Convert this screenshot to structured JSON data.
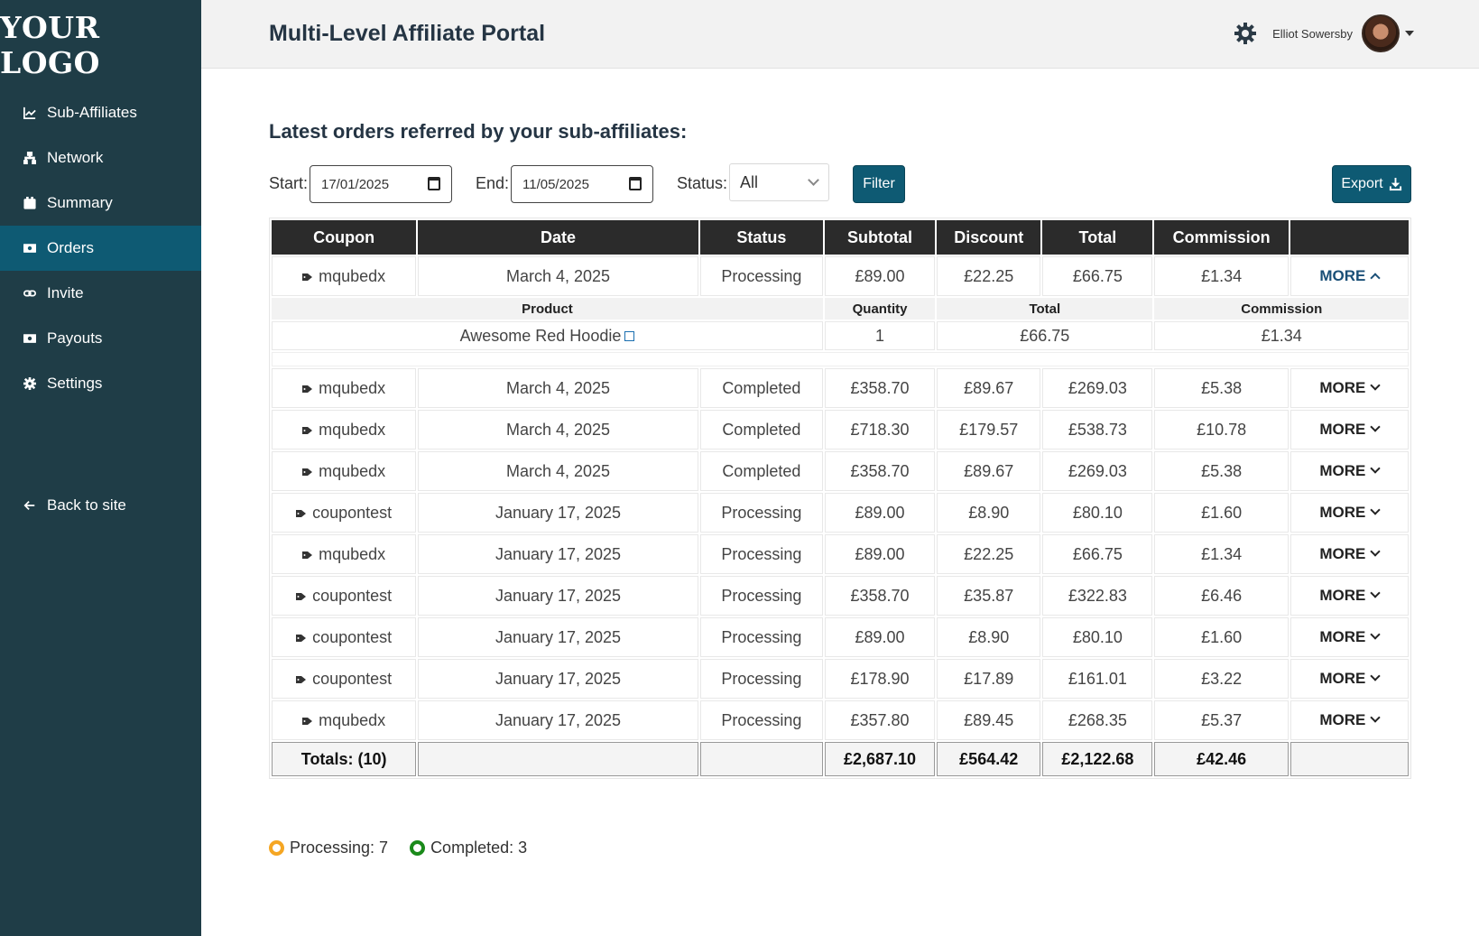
{
  "brand": {
    "logo_text": "YOUR LOGO"
  },
  "sidebar": {
    "items": [
      {
        "label": "Sub-Affiliates",
        "icon": "chart-line-icon"
      },
      {
        "label": "Network",
        "icon": "sitemap-icon"
      },
      {
        "label": "Summary",
        "icon": "calendar-icon"
      },
      {
        "label": "Orders",
        "icon": "money-icon",
        "active": true
      },
      {
        "label": "Invite",
        "icon": "link-icon"
      },
      {
        "label": "Payouts",
        "icon": "money-icon"
      },
      {
        "label": "Settings",
        "icon": "gear-icon"
      }
    ],
    "back_label": "Back to site"
  },
  "header": {
    "title": "Multi-Level Affiliate Portal",
    "user_name": "Elliot Sowersby"
  },
  "main": {
    "title": "Latest orders referred by your sub-affiliates:",
    "filters": {
      "start_label": "Start:",
      "start_value": "17/01/2025",
      "end_label": "End:",
      "end_value": "11/05/2025",
      "status_label": "Status:",
      "status_value": "All",
      "filter_label": "Filter",
      "export_label": "Export"
    },
    "table": {
      "headers": [
        "Coupon",
        "Date",
        "Status",
        "Subtotal",
        "Discount",
        "Total",
        "Commission",
        ""
      ],
      "more_label": "MORE",
      "expanded": {
        "headers": [
          "Product",
          "Quantity",
          "Total",
          "Commission"
        ],
        "product": "Awesome Red Hoodie",
        "quantity": "1",
        "total": "£66.75",
        "commission": "£1.34"
      },
      "rows": [
        {
          "coupon": "mqubedx",
          "date": "March 4, 2025",
          "status": "Processing",
          "subtotal": "£89.00",
          "discount": "£22.25",
          "total": "£66.75",
          "commission": "£1.34"
        },
        {
          "coupon": "mqubedx",
          "date": "March 4, 2025",
          "status": "Completed",
          "subtotal": "£358.70",
          "discount": "£89.67",
          "total": "£269.03",
          "commission": "£5.38"
        },
        {
          "coupon": "mqubedx",
          "date": "March 4, 2025",
          "status": "Completed",
          "subtotal": "£718.30",
          "discount": "£179.57",
          "total": "£538.73",
          "commission": "£10.78"
        },
        {
          "coupon": "mqubedx",
          "date": "March 4, 2025",
          "status": "Completed",
          "subtotal": "£358.70",
          "discount": "£89.67",
          "total": "£269.03",
          "commission": "£5.38"
        },
        {
          "coupon": "coupontest",
          "date": "January 17, 2025",
          "status": "Processing",
          "subtotal": "£89.00",
          "discount": "£8.90",
          "total": "£80.10",
          "commission": "£1.60"
        },
        {
          "coupon": "mqubedx",
          "date": "January 17, 2025",
          "status": "Processing",
          "subtotal": "£89.00",
          "discount": "£22.25",
          "total": "£66.75",
          "commission": "£1.34"
        },
        {
          "coupon": "coupontest",
          "date": "January 17, 2025",
          "status": "Processing",
          "subtotal": "£358.70",
          "discount": "£35.87",
          "total": "£322.83",
          "commission": "£6.46"
        },
        {
          "coupon": "coupontest",
          "date": "January 17, 2025",
          "status": "Processing",
          "subtotal": "£89.00",
          "discount": "£8.90",
          "total": "£80.10",
          "commission": "£1.60"
        },
        {
          "coupon": "coupontest",
          "date": "January 17, 2025",
          "status": "Processing",
          "subtotal": "£178.90",
          "discount": "£17.89",
          "total": "£161.01",
          "commission": "£3.22"
        },
        {
          "coupon": "mqubedx",
          "date": "January 17, 2025",
          "status": "Processing",
          "subtotal": "£357.80",
          "discount": "£89.45",
          "total": "£268.35",
          "commission": "£5.37"
        }
      ],
      "totals": {
        "label": "Totals: (10)",
        "subtotal": "£2,687.10",
        "discount": "£564.42",
        "total": "£2,122.68",
        "commission": "£42.46"
      }
    },
    "legend": [
      {
        "label": "Processing: 7",
        "color": "#f5a623"
      },
      {
        "label": "Completed: 3",
        "color": "#1a8a1a"
      }
    ]
  },
  "colors": {
    "sidebar": "#1f3d47",
    "accent": "#0e5a73",
    "header_bg": "#f2f2f2"
  }
}
